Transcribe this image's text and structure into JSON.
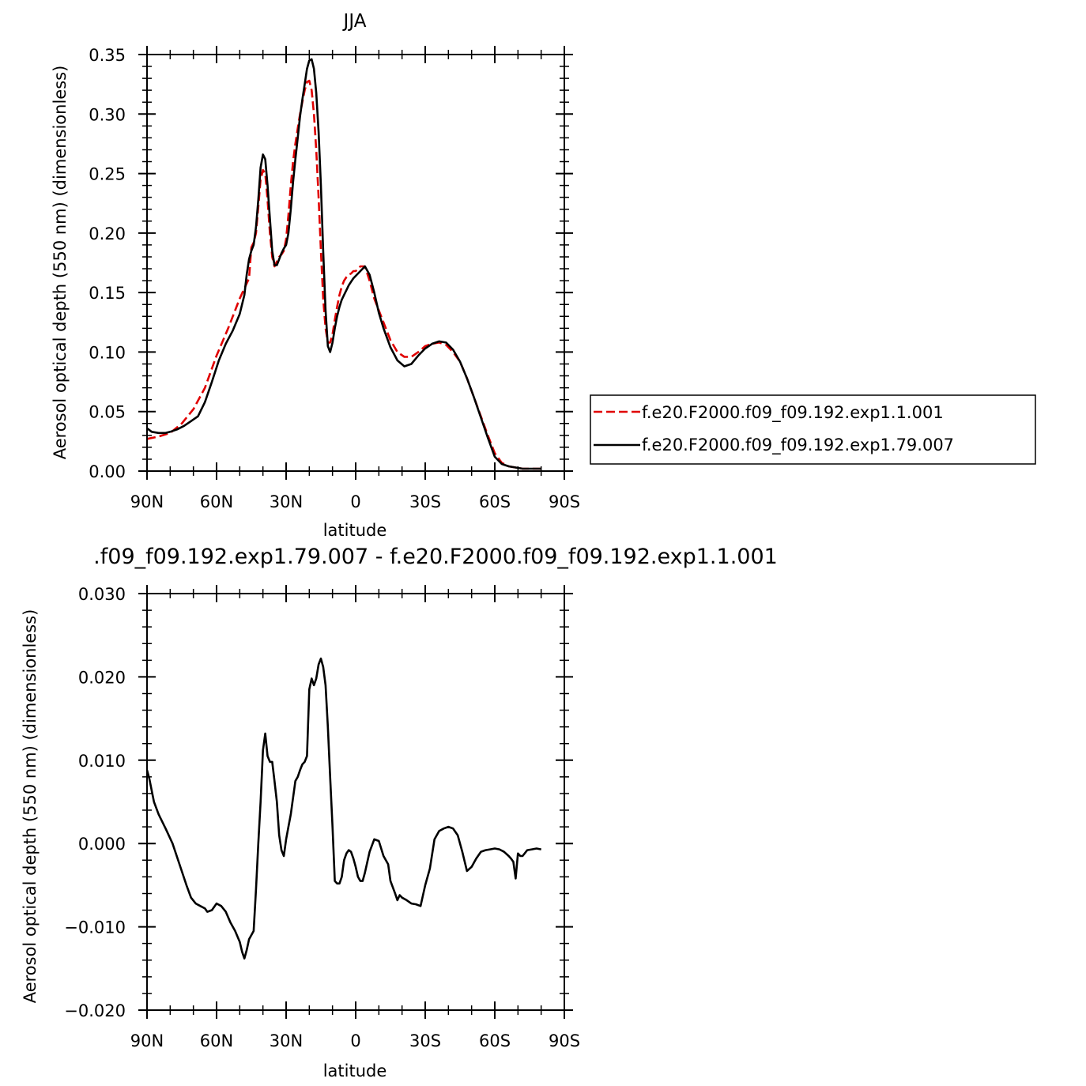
{
  "chart_data": [
    {
      "type": "line",
      "title": "JJA",
      "xlabel": "latitude",
      "ylabel": "Aerosol optical depth (550 nm) (dimensionless)",
      "xlim": [
        90,
        -90
      ],
      "ylim": [
        0,
        0.35
      ],
      "x_ticks": [
        {
          "value": 90,
          "label": "90N"
        },
        {
          "value": 60,
          "label": "60N"
        },
        {
          "value": 30,
          "label": "30N"
        },
        {
          "value": 0,
          "label": "0"
        },
        {
          "value": -30,
          "label": "30S"
        },
        {
          "value": -60,
          "label": "60S"
        },
        {
          "value": -90,
          "label": "90S"
        }
      ],
      "y_ticks": [
        {
          "value": 0,
          "label": "0.00"
        },
        {
          "value": 0.05,
          "label": "0.05"
        },
        {
          "value": 0.1,
          "label": "0.10"
        },
        {
          "value": 0.15,
          "label": "0.15"
        },
        {
          "value": 0.2,
          "label": "0.20"
        },
        {
          "value": 0.25,
          "label": "0.25"
        },
        {
          "value": 0.3,
          "label": "0.30"
        },
        {
          "value": 0.35,
          "label": "0.35"
        }
      ],
      "legend_position": "right",
      "series": [
        {
          "name": "f.e20.F2000.f09_f09.192.exp1.1.001",
          "color": "#e00000",
          "dash": "dashed",
          "x": [
            90,
            85,
            80,
            75,
            70,
            65,
            60,
            55,
            50,
            46,
            45,
            44,
            43,
            42,
            41,
            40,
            39,
            38,
            37,
            36,
            35,
            34,
            33,
            32,
            31,
            30,
            29,
            28,
            27,
            26,
            25,
            24,
            23,
            22,
            21,
            20,
            19,
            18,
            17,
            16,
            15,
            14,
            13,
            12,
            11,
            10,
            9,
            8,
            7,
            6,
            5,
            4,
            3,
            2,
            1,
            0,
            -2,
            -4,
            -6,
            -8,
            -10,
            -12,
            -15,
            -18,
            -21,
            -24,
            -27,
            -30,
            -33,
            -36,
            -39,
            -42,
            -45,
            -48,
            -51,
            -54,
            -57,
            -60,
            -63,
            -66,
            -69,
            -72,
            -75,
            -78,
            -80
          ],
          "y": [
            0.027,
            0.029,
            0.032,
            0.04,
            0.052,
            0.07,
            0.097,
            0.12,
            0.145,
            0.162,
            0.188,
            0.192,
            0.2,
            0.222,
            0.245,
            0.253,
            0.25,
            0.228,
            0.2,
            0.18,
            0.172,
            0.176,
            0.18,
            0.182,
            0.185,
            0.195,
            0.215,
            0.24,
            0.26,
            0.275,
            0.288,
            0.3,
            0.31,
            0.32,
            0.327,
            0.328,
            0.32,
            0.3,
            0.27,
            0.23,
            0.185,
            0.145,
            0.12,
            0.108,
            0.108,
            0.115,
            0.127,
            0.138,
            0.148,
            0.155,
            0.16,
            0.163,
            0.165,
            0.166,
            0.168,
            0.168,
            0.172,
            0.172,
            0.16,
            0.145,
            0.135,
            0.125,
            0.11,
            0.1,
            0.096,
            0.096,
            0.1,
            0.105,
            0.107,
            0.108,
            0.106,
            0.1,
            0.092,
            0.078,
            0.062,
            0.046,
            0.03,
            0.015,
            0.007,
            0.004,
            0.003,
            0.002,
            0.002,
            0.002,
            0.002
          ]
        },
        {
          "name": "f.e20.F2000.f09_f09.192.exp1.79.007",
          "color": "#000000",
          "dash": "solid",
          "x": [
            90,
            88,
            85,
            82,
            80,
            77,
            74,
            71,
            68,
            65,
            62,
            59,
            56,
            53,
            50,
            48,
            47,
            46,
            45,
            44,
            43,
            42,
            41,
            40,
            39,
            38,
            37,
            36,
            35,
            34,
            33,
            32,
            31,
            30,
            29,
            28,
            27,
            26,
            25,
            24,
            23,
            22,
            21,
            20,
            19,
            18,
            17,
            16,
            15,
            14,
            13,
            12,
            11,
            10,
            9,
            8,
            7,
            6,
            5,
            4,
            3,
            2,
            1,
            0,
            -2,
            -4,
            -6,
            -8,
            -10,
            -12,
            -15,
            -18,
            -21,
            -24,
            -27,
            -30,
            -33,
            -36,
            -39,
            -42,
            -45,
            -48,
            -51,
            -54,
            -57,
            -60,
            -63,
            -66,
            -69,
            -72,
            -75,
            -78,
            -80
          ],
          "y": [
            0.036,
            0.033,
            0.032,
            0.032,
            0.033,
            0.035,
            0.038,
            0.042,
            0.046,
            0.058,
            0.075,
            0.093,
            0.107,
            0.118,
            0.132,
            0.148,
            0.165,
            0.178,
            0.185,
            0.19,
            0.205,
            0.228,
            0.255,
            0.266,
            0.262,
            0.24,
            0.212,
            0.185,
            0.173,
            0.173,
            0.178,
            0.183,
            0.187,
            0.19,
            0.2,
            0.22,
            0.243,
            0.262,
            0.28,
            0.298,
            0.312,
            0.325,
            0.338,
            0.345,
            0.346,
            0.338,
            0.318,
            0.285,
            0.24,
            0.185,
            0.135,
            0.105,
            0.1,
            0.108,
            0.12,
            0.13,
            0.138,
            0.144,
            0.148,
            0.152,
            0.156,
            0.159,
            0.162,
            0.164,
            0.168,
            0.172,
            0.165,
            0.15,
            0.133,
            0.12,
            0.104,
            0.093,
            0.088,
            0.09,
            0.097,
            0.103,
            0.107,
            0.109,
            0.108,
            0.102,
            0.092,
            0.078,
            0.062,
            0.045,
            0.028,
            0.012,
            0.006,
            0.004,
            0.003,
            0.002,
            0.002,
            0.002,
            0.002
          ]
        }
      ]
    },
    {
      "type": "line",
      "title": ".f09_f09.192.exp1.79.007 - f.e20.F2000.f09_f09.192.exp1.1.001",
      "xlabel": "latitude",
      "ylabel": "Aerosol optical depth (550 nm) (dimensionless)",
      "xlim": [
        90,
        -90
      ],
      "ylim": [
        -0.02,
        0.03
      ],
      "x_ticks": [
        {
          "value": 90,
          "label": "90N"
        },
        {
          "value": 60,
          "label": "60N"
        },
        {
          "value": 30,
          "label": "30N"
        },
        {
          "value": 0,
          "label": "0"
        },
        {
          "value": -30,
          "label": "30S"
        },
        {
          "value": -60,
          "label": "60S"
        },
        {
          "value": -90,
          "label": "90S"
        }
      ],
      "y_ticks": [
        {
          "value": -0.02,
          "label": "−0.020"
        },
        {
          "value": -0.01,
          "label": "−0.010"
        },
        {
          "value": 0,
          "label": "0.000"
        },
        {
          "value": 0.01,
          "label": "0.010"
        },
        {
          "value": 0.02,
          "label": "0.020"
        },
        {
          "value": 0.03,
          "label": "0.030"
        }
      ],
      "series": [
        {
          "color": "#000000",
          "dash": "solid",
          "x": [
            90,
            89,
            87,
            85,
            82,
            79,
            76,
            73,
            71,
            69,
            67,
            65,
            64,
            62,
            60,
            58,
            56,
            54,
            52,
            50,
            49,
            48,
            47,
            46,
            45,
            44,
            43,
            42,
            41,
            40,
            39,
            38,
            37,
            36,
            35,
            34,
            33,
            32,
            31,
            30,
            29,
            28,
            27,
            26,
            25,
            24,
            23,
            22,
            21,
            20,
            19,
            18,
            17,
            16,
            15,
            14,
            13,
            12,
            11,
            10,
            9,
            8,
            7,
            6,
            5,
            4,
            3,
            2,
            1,
            0,
            -1,
            -2,
            -3,
            -4,
            -6,
            -8,
            -10,
            -12,
            -14,
            -15,
            -17,
            -18,
            -19,
            -20,
            -22,
            -24,
            -26,
            -28,
            -30,
            -32,
            -34,
            -36,
            -38,
            -40,
            -42,
            -44,
            -46,
            -48,
            -50,
            -52,
            -54,
            -56,
            -58,
            -60,
            -62,
            -64,
            -66,
            -67,
            -68,
            -69,
            -70,
            -71,
            -72,
            -74,
            -76,
            -78,
            -80
          ],
          "y": [
            0.0088,
            0.0078,
            0.005,
            0.0035,
            0.0018,
            0.0,
            -0.0025,
            -0.005,
            -0.0065,
            -0.0072,
            -0.0075,
            -0.0078,
            -0.0082,
            -0.008,
            -0.0072,
            -0.0075,
            -0.0082,
            -0.0095,
            -0.0105,
            -0.0118,
            -0.013,
            -0.0138,
            -0.0128,
            -0.0115,
            -0.011,
            -0.0105,
            -0.0055,
            0.0,
            0.005,
            0.0112,
            0.0132,
            0.0105,
            0.0098,
            0.0098,
            0.0075,
            0.005,
            0.001,
            -0.0008,
            -0.0015,
            0.0005,
            0.002,
            0.0035,
            0.0055,
            0.0075,
            0.008,
            0.0088,
            0.0095,
            0.0098,
            0.0105,
            0.0185,
            0.0198,
            0.019,
            0.0198,
            0.0215,
            0.0222,
            0.0212,
            0.019,
            0.014,
            0.008,
            0.002,
            -0.0045,
            -0.0048,
            -0.0048,
            -0.004,
            -0.002,
            -0.0012,
            -0.0008,
            -0.001,
            -0.0018,
            -0.0028,
            -0.004,
            -0.0045,
            -0.0045,
            -0.0035,
            -0.001,
            0.0005,
            0.0003,
            -0.0015,
            -0.0025,
            -0.0045,
            -0.006,
            -0.0068,
            -0.0062,
            -0.0065,
            -0.0068,
            -0.0072,
            -0.0073,
            -0.0075,
            -0.005,
            -0.003,
            0.0005,
            0.0015,
            0.0018,
            0.002,
            0.0018,
            0.001,
            -0.001,
            -0.0033,
            -0.0028,
            -0.0018,
            -0.001,
            -0.0008,
            -0.0007,
            -0.0006,
            -0.0007,
            -0.001,
            -0.0015,
            -0.0018,
            -0.0022,
            -0.0042,
            -0.0012,
            -0.0015,
            -0.0015,
            -0.0008,
            -0.0007,
            -0.0006,
            -0.0007
          ]
        }
      ]
    }
  ]
}
